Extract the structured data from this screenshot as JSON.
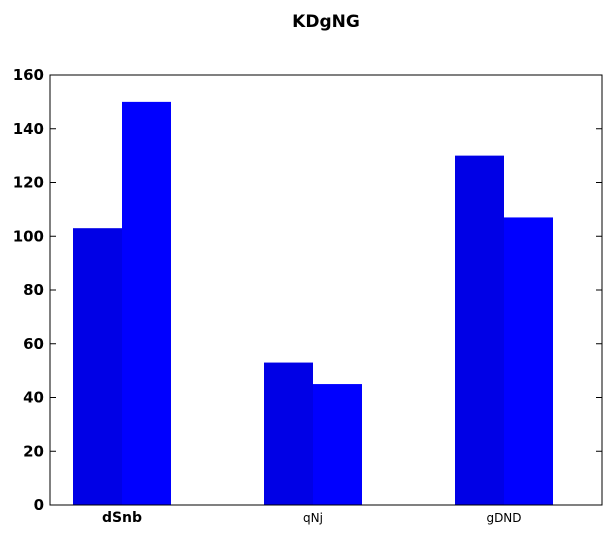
{
  "chart_data": {
    "type": "bar",
    "title": "KDgNG",
    "xlabel": "",
    "ylabel": "",
    "categories": [
      "dSnb",
      "qNj",
      "gDND"
    ],
    "series": [
      {
        "values": [
          103,
          53,
          130
        ],
        "color": "#0000e6"
      },
      {
        "values": [
          150,
          45,
          107
        ],
        "color": "#0000ff"
      }
    ],
    "ylim": [
      0,
      160
    ],
    "yticks": [
      "0",
      "20",
      "40",
      "60",
      "80",
      "100",
      "120",
      "140",
      "160"
    ],
    "grid": false,
    "legend": "none"
  }
}
